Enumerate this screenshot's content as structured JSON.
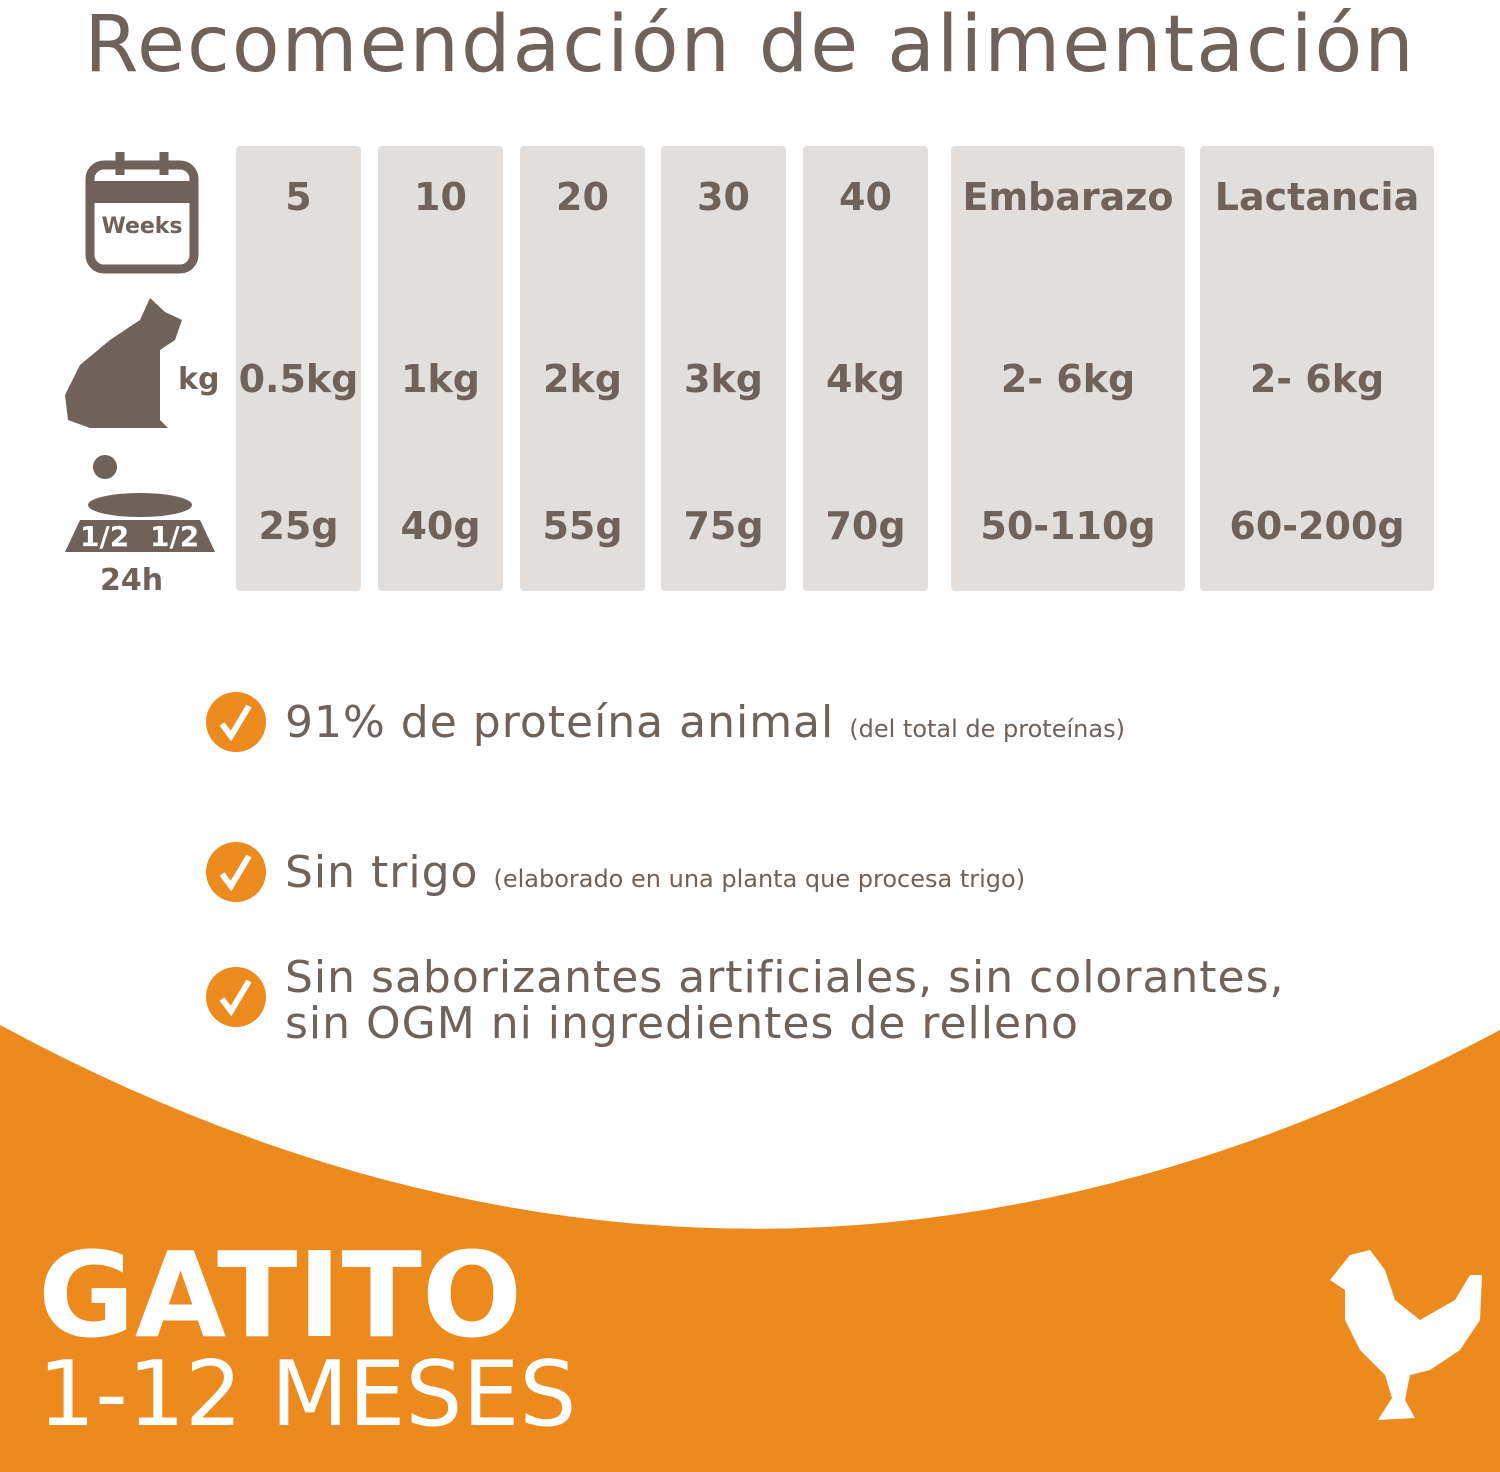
{
  "title": "Recomendación de alimentación",
  "icons": {
    "weeks": "Weeks",
    "kg": "kg",
    "half_day": "1/2",
    "half_night": "1/2",
    "period": "24h"
  },
  "table": {
    "columns": [
      {
        "age": "5",
        "weight": "0.5kg",
        "amount": "25g"
      },
      {
        "age": "10",
        "weight": "1kg",
        "amount": "40g"
      },
      {
        "age": "20",
        "weight": "2kg",
        "amount": "55g"
      },
      {
        "age": "30",
        "weight": "3kg",
        "amount": "75g"
      },
      {
        "age": "40",
        "weight": "4kg",
        "amount": "70g"
      },
      {
        "age": "Embarazo",
        "weight": "2- 6kg",
        "amount": "50-110g"
      },
      {
        "age": "Lactancia",
        "weight": "2- 6kg",
        "amount": "60-200g"
      }
    ]
  },
  "features": [
    {
      "text": "91% de proteína animal",
      "note": "(del total de proteínas)"
    },
    {
      "text": "Sin trigo",
      "note": "(elaborado en una planta que procesa trigo)"
    },
    {
      "text": "Sin saborizantes artificiales, sin colorantes, sin OGM ni ingredientes de relleno"
    }
  ],
  "footer": {
    "title": "GATITO",
    "subtitle": "1-12 MESES"
  }
}
